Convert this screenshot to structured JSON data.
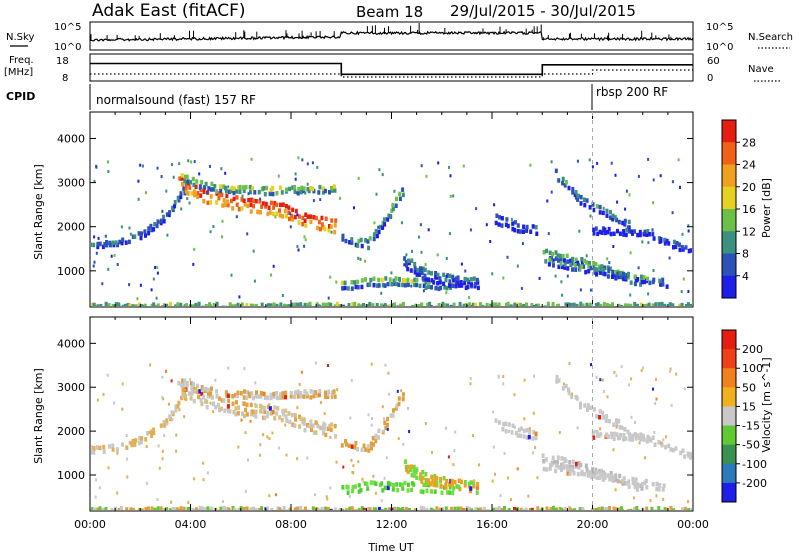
{
  "header": {
    "title": "Adak East (fitACF)",
    "beam": "Beam 18",
    "dates": "29/Jul/2015 - 30/Jul/2015"
  },
  "summary": {
    "nsky_label": "N.Sky",
    "nsearch_label": "N.Search",
    "noise_ticks": [
      "10^5",
      "10^0"
    ],
    "freq_label": [
      "Freq.",
      "[MHz]"
    ],
    "freq_ticks": [
      "18",
      "8"
    ],
    "nave_label": "Nave",
    "nave_ticks": [
      "60",
      "0"
    ],
    "cpid_label": "CPID",
    "cpid_segments": [
      {
        "label": "normalsound (fast) 157 RF",
        "start_hour": 0
      },
      {
        "label": "rbsp 200 RF",
        "start_hour": 20
      }
    ],
    "freq_segments": [
      {
        "start": 0,
        "end": 10,
        "freq_mhz": 14.5
      },
      {
        "start": 10,
        "end": 18,
        "freq_mhz": 10.5
      },
      {
        "start": 18,
        "end": 24,
        "freq_mhz": 14.0
      }
    ]
  },
  "chart_data": [
    {
      "type": "heatmap",
      "panel": "power",
      "ylabel": "Slant Range [km]",
      "yticks": [
        "1000",
        "2000",
        "3000",
        "4000"
      ],
      "ylim": [
        180,
        4600
      ],
      "xlim": [
        0,
        24
      ],
      "colorbar_label": "Power [dB]",
      "colorbar_ticks": [
        "4",
        "8",
        "12",
        "16",
        "20",
        "24",
        "28"
      ],
      "colorbar_colors": [
        "#1e1ee8",
        "#2c52b8",
        "#3c9080",
        "#6cc048",
        "#e6d020",
        "#f0a020",
        "#f06018",
        "#e61e10"
      ],
      "bands": [
        {
          "points": [
            [
              0,
              1650
            ],
            [
              1,
              1700
            ],
            [
              2,
              1900
            ],
            [
              3,
              2300
            ],
            [
              3.8,
              3000
            ]
          ],
          "width": 160,
          "level": 0.25
        },
        {
          "points": [
            [
              3.5,
              3100
            ],
            [
              4.5,
              2800
            ],
            [
              6,
              2600
            ],
            [
              7.5,
              2500
            ],
            [
              8.5,
              2250
            ],
            [
              9.8,
              2100
            ]
          ],
          "width": 330,
          "level": 0.85
        },
        {
          "points": [
            [
              3.6,
              3200
            ],
            [
              5,
              2950
            ],
            [
              7,
              2900
            ],
            [
              9.8,
              2950
            ]
          ],
          "width": 180,
          "level": 0.45
        },
        {
          "points": [
            [
              10,
              1850
            ],
            [
              11,
              1700
            ],
            [
              11.8,
              2300
            ],
            [
              12.5,
              3000
            ]
          ],
          "width": 220,
          "level": 0.35
        },
        {
          "points": [
            [
              10,
              750
            ],
            [
              11,
              850
            ],
            [
              12.5,
              850
            ],
            [
              14.5,
              750
            ]
          ],
          "width": 240,
          "level": 0.4
        },
        {
          "points": [
            [
              12.5,
              1300
            ],
            [
              13.3,
              1000
            ],
            [
              14.5,
              850
            ],
            [
              15.5,
              800
            ]
          ],
          "width": 280,
          "level": 0.2
        },
        {
          "points": [
            [
              16,
              2300
            ],
            [
              17,
              2100
            ],
            [
              17.8,
              2000
            ]
          ],
          "width": 250,
          "level": 0.2
        },
        {
          "points": [
            [
              18.5,
              3300
            ],
            [
              19.5,
              2700
            ],
            [
              20.5,
              2400
            ],
            [
              21.5,
              2100
            ]
          ],
          "width": 200,
          "level": 0.3
        },
        {
          "points": [
            [
              18,
              1500
            ],
            [
              19.5,
              1300
            ],
            [
              21,
              1000
            ],
            [
              22,
              800
            ]
          ],
          "width": 220,
          "level": 0.35
        },
        {
          "points": [
            [
              18,
              1300
            ],
            [
              20,
              1100
            ],
            [
              22,
              900
            ],
            [
              23,
              800
            ]
          ],
          "width": 180,
          "level": 0.3
        },
        {
          "points": [
            [
              20,
              2000
            ],
            [
              22,
              1950
            ],
            [
              24,
              1500
            ]
          ],
          "width": 160,
          "level": 0.15
        },
        {
          "points": [
            [
              0,
              270
            ],
            [
              8,
              270
            ],
            [
              16,
              270
            ],
            [
              24,
              270
            ]
          ],
          "width": 130,
          "level": 0.4
        }
      ]
    },
    {
      "type": "heatmap",
      "panel": "velocity",
      "ylabel": "Slant Range [km]",
      "yticks": [
        "1000",
        "2000",
        "3000",
        "4000"
      ],
      "ylim": [
        180,
        4600
      ],
      "xlim": [
        0,
        24
      ],
      "xticks": [
        "00:00",
        "04:00",
        "08:00",
        "12:00",
        "16:00",
        "20:00",
        "00:00"
      ],
      "xlabel": "Time UT",
      "colorbar_label": "Velocity [m s^-1]",
      "colorbar_ticks": [
        "200",
        "100",
        "50",
        "15",
        "-15",
        "-50",
        "-100",
        "-200"
      ],
      "colorbar_colors": [
        "#1e1ee8",
        "#2c7ab8",
        "#3c9050",
        "#60c830",
        "#c8c8c8",
        "#f0b020",
        "#f08020",
        "#f04018",
        "#e61e10"
      ],
      "bands": [
        {
          "points": [
            [
              0,
              1650
            ],
            [
              1,
              1700
            ],
            [
              2,
              1900
            ],
            [
              3,
              2300
            ],
            [
              3.8,
              3000
            ]
          ],
          "width": 160,
          "colors": [
            "#c8c8c8",
            "#e0b050"
          ]
        },
        {
          "points": [
            [
              3.5,
              3100
            ],
            [
              4.5,
              2800
            ],
            [
              6,
              2600
            ],
            [
              7.5,
              2500
            ],
            [
              8.5,
              2250
            ],
            [
              9.8,
              2100
            ]
          ],
          "width": 330,
          "colors": [
            "#c8c8c8",
            "#d8c080",
            "#e8a040"
          ]
        },
        {
          "points": [
            [
              3.6,
              3200
            ],
            [
              5,
              2950
            ],
            [
              7,
              2900
            ],
            [
              9.8,
              2950
            ]
          ],
          "width": 180,
          "colors": [
            "#c8c8c8",
            "#e0a040"
          ]
        },
        {
          "points": [
            [
              10,
              1850
            ],
            [
              11,
              1700
            ],
            [
              11.8,
              2300
            ],
            [
              12.5,
              3000
            ]
          ],
          "width": 220,
          "colors": [
            "#c8c8c8",
            "#e0a040"
          ]
        },
        {
          "points": [
            [
              10,
              750
            ],
            [
              11,
              850
            ],
            [
              12.5,
              850
            ],
            [
              14.5,
              750
            ]
          ],
          "width": 240,
          "colors": [
            "#50d030",
            "#70e040"
          ]
        },
        {
          "points": [
            [
              12.5,
              1300
            ],
            [
              13.3,
              1000
            ],
            [
              14.5,
              850
            ],
            [
              15.5,
              800
            ]
          ],
          "width": 280,
          "colors": [
            "#70d840",
            "#f0a020"
          ]
        },
        {
          "points": [
            [
              16,
              2300
            ],
            [
              17,
              2100
            ],
            [
              17.8,
              2000
            ]
          ],
          "width": 250,
          "colors": [
            "#c8c8c8"
          ]
        },
        {
          "points": [
            [
              18.5,
              3300
            ],
            [
              19.5,
              2700
            ],
            [
              20.5,
              2400
            ],
            [
              21.5,
              2100
            ]
          ],
          "width": 200,
          "colors": [
            "#c8c8c8"
          ]
        },
        {
          "points": [
            [
              18,
              1500
            ],
            [
              19.5,
              1300
            ],
            [
              21,
              1000
            ],
            [
              22,
              800
            ]
          ],
          "width": 220,
          "colors": [
            "#c8c8c8",
            "#b8b8b8"
          ]
        },
        {
          "points": [
            [
              18,
              1300
            ],
            [
              20,
              1100
            ],
            [
              22,
              900
            ],
            [
              23,
              800
            ]
          ],
          "width": 180,
          "colors": [
            "#c8c8c8"
          ]
        },
        {
          "points": [
            [
              20,
              2000
            ],
            [
              22,
              1950
            ],
            [
              24,
              1500
            ]
          ],
          "width": 160,
          "colors": [
            "#c8c8c8"
          ]
        },
        {
          "points": [
            [
              0,
              270
            ],
            [
              8,
              270
            ],
            [
              16,
              270
            ],
            [
              24,
              270
            ]
          ],
          "width": 130,
          "colors": [
            "#e0a040",
            "#c8c8c8",
            "#60c830"
          ]
        }
      ]
    }
  ]
}
